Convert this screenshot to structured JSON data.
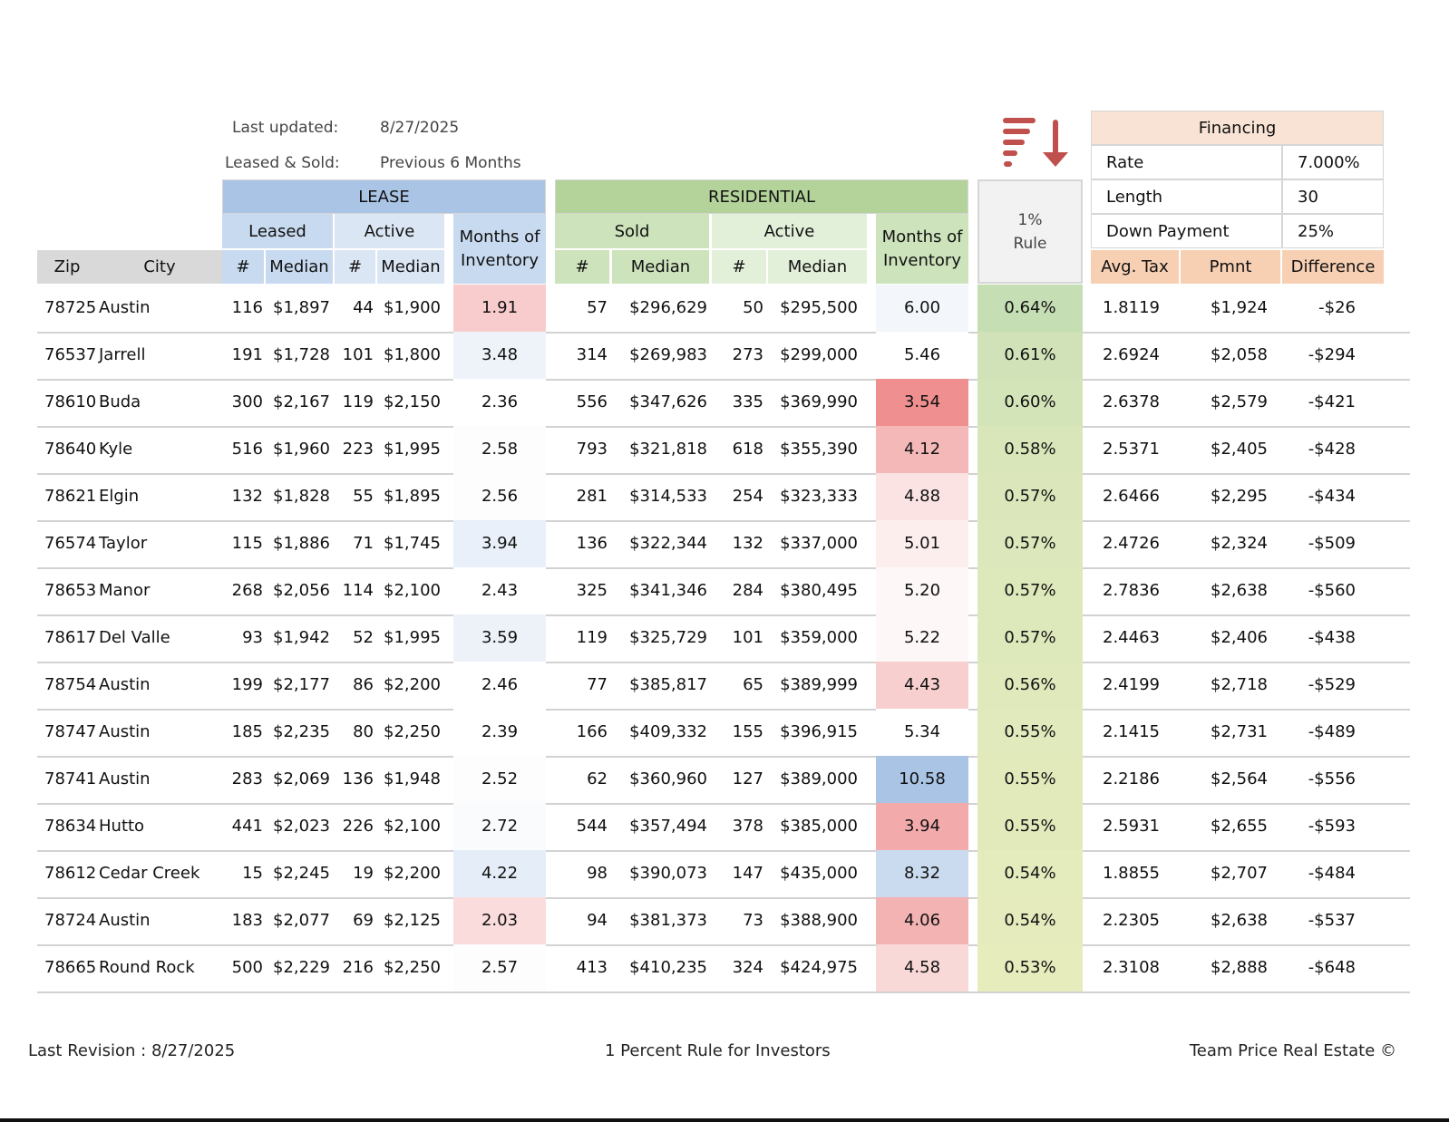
{
  "meta": {
    "last_updated_label": "Last updated:",
    "last_updated_value": "8/27/2025",
    "period_label": "Leased & Sold:",
    "period_value": "Previous 6 Months"
  },
  "headers": {
    "lease": "LEASE",
    "residential": "RESIDENTIAL",
    "leased": "Leased",
    "active": "Active",
    "sold": "Sold",
    "months_line1": "Months of",
    "months_line2": "Inventory",
    "one_pct_line1": "1%",
    "one_pct_line2": "Rule",
    "zip": "Zip",
    "city": "City",
    "count": "#",
    "median": "Median",
    "avg_tax": "Avg. Tax",
    "pmnt": "Pmnt",
    "difference": "Difference"
  },
  "financing": {
    "title": "Financing",
    "rows": [
      {
        "label": "Rate",
        "value": "7.000%"
      },
      {
        "label": "Length",
        "value": "30"
      },
      {
        "label": "Down Payment",
        "value": "25%"
      }
    ]
  },
  "sort_icon": "sort-descending-icon",
  "rows": [
    {
      "zip": "78725",
      "city": "Austin",
      "l_n": "116",
      "l_med": "$1,897",
      "la_n": "44",
      "la_med": "$1,900",
      "l_moi": "1.91",
      "l_moi_color": "#f8cccc",
      "s_n": "57",
      "s_med": "$296,629",
      "a_n": "50",
      "a_med": "$295,500",
      "r_moi": "6.00",
      "r_moi_color": "#f3f6fb",
      "pct": "0.64%",
      "pct_color": "#c6deb4",
      "tax": "1.8119",
      "pmnt": "$1,924",
      "diff": "-$26"
    },
    {
      "zip": "76537",
      "city": "Jarrell",
      "l_n": "191",
      "l_med": "$1,728",
      "la_n": "101",
      "la_med": "$1,800",
      "l_moi": "3.48",
      "l_moi_color": "#eef3fa",
      "s_n": "314",
      "s_med": "$269,983",
      "a_n": "273",
      "a_med": "$299,000",
      "r_moi": "5.46",
      "r_moi_color": "#ffffff",
      "pct": "0.61%",
      "pct_color": "#d1e2b8",
      "tax": "2.6924",
      "pmnt": "$2,058",
      "diff": "-$294"
    },
    {
      "zip": "78610",
      "city": "Buda",
      "l_n": "300",
      "l_med": "$2,167",
      "la_n": "119",
      "la_med": "$2,150",
      "l_moi": "2.36",
      "l_moi_color": "#ffffff",
      "s_n": "556",
      "s_med": "$347,626",
      "a_n": "335",
      "a_med": "$369,990",
      "r_moi": "3.54",
      "r_moi_color": "#ef8f8f",
      "pct": "0.60%",
      "pct_color": "#d4e4b9",
      "tax": "2.6378",
      "pmnt": "$2,579",
      "diff": "-$421"
    },
    {
      "zip": "78640",
      "city": "Kyle",
      "l_n": "516",
      "l_med": "$1,960",
      "la_n": "223",
      "la_med": "$1,995",
      "l_moi": "2.58",
      "l_moi_color": "#fdfdfe",
      "s_n": "793",
      "s_med": "$321,818",
      "a_n": "618",
      "a_med": "$355,390",
      "r_moi": "4.12",
      "r_moi_color": "#f5b8b8",
      "pct": "0.58%",
      "pct_color": "#d8e6ba",
      "tax": "2.5371",
      "pmnt": "$2,405",
      "diff": "-$428"
    },
    {
      "zip": "78621",
      "city": "Elgin",
      "l_n": "132",
      "l_med": "$1,828",
      "la_n": "55",
      "la_med": "$1,895",
      "l_moi": "2.56",
      "l_moi_color": "#fdfdfe",
      "s_n": "281",
      "s_med": "$314,533",
      "a_n": "254",
      "a_med": "$323,333",
      "r_moi": "4.88",
      "r_moi_color": "#fbe3e3",
      "pct": "0.57%",
      "pct_color": "#dbe7bb",
      "tax": "2.6466",
      "pmnt": "$2,295",
      "diff": "-$434"
    },
    {
      "zip": "76574",
      "city": "Taylor",
      "l_n": "115",
      "l_med": "$1,886",
      "la_n": "71",
      "la_med": "$1,745",
      "l_moi": "3.94",
      "l_moi_color": "#e9f0f9",
      "s_n": "136",
      "s_med": "$322,344",
      "a_n": "132",
      "a_med": "$337,000",
      "r_moi": "5.01",
      "r_moi_color": "#fdeeee",
      "pct": "0.57%",
      "pct_color": "#dce8bb",
      "tax": "2.4726",
      "pmnt": "$2,324",
      "diff": "-$509"
    },
    {
      "zip": "78653",
      "city": "Manor",
      "l_n": "268",
      "l_med": "$2,056",
      "la_n": "114",
      "la_med": "$2,100",
      "l_moi": "2.43",
      "l_moi_color": "#ffffff",
      "s_n": "325",
      "s_med": "$341,346",
      "a_n": "284",
      "a_med": "$380,495",
      "r_moi": "5.20",
      "r_moi_color": "#fdf7f7",
      "pct": "0.57%",
      "pct_color": "#dde8bb",
      "tax": "2.7836",
      "pmnt": "$2,638",
      "diff": "-$560"
    },
    {
      "zip": "78617",
      "city": "Del Valle",
      "l_n": "93",
      "l_med": "$1,942",
      "la_n": "52",
      "la_med": "$1,995",
      "l_moi": "3.59",
      "l_moi_color": "#edf2f9",
      "s_n": "119",
      "s_med": "$325,729",
      "a_n": "101",
      "a_med": "$359,000",
      "r_moi": "5.22",
      "r_moi_color": "#fdf7f7",
      "pct": "0.57%",
      "pct_color": "#dde8bb",
      "tax": "2.4463",
      "pmnt": "$2,406",
      "diff": "-$438"
    },
    {
      "zip": "78754",
      "city": "Austin",
      "l_n": "199",
      "l_med": "$2,177",
      "la_n": "86",
      "la_med": "$2,200",
      "l_moi": "2.46",
      "l_moi_color": "#ffffff",
      "s_n": "77",
      "s_med": "$385,817",
      "a_n": "65",
      "a_med": "$389,999",
      "r_moi": "4.43",
      "r_moi_color": "#f8cfcf",
      "pct": "0.56%",
      "pct_color": "#e0e9bc",
      "tax": "2.4199",
      "pmnt": "$2,718",
      "diff": "-$529"
    },
    {
      "zip": "78747",
      "city": "Austin",
      "l_n": "185",
      "l_med": "$2,235",
      "la_n": "80",
      "la_med": "$2,250",
      "l_moi": "2.39",
      "l_moi_color": "#ffffff",
      "s_n": "166",
      "s_med": "$409,332",
      "a_n": "155",
      "a_med": "$396,915",
      "r_moi": "5.34",
      "r_moi_color": "#ffffff",
      "pct": "0.55%",
      "pct_color": "#e1eabc",
      "tax": "2.1415",
      "pmnt": "$2,731",
      "diff": "-$489"
    },
    {
      "zip": "78741",
      "city": "Austin",
      "l_n": "283",
      "l_med": "$2,069",
      "la_n": "136",
      "la_med": "$1,948",
      "l_moi": "2.52",
      "l_moi_color": "#fdfdfe",
      "s_n": "62",
      "s_med": "$360,960",
      "a_n": "127",
      "a_med": "$389,000",
      "r_moi": "10.58",
      "r_moi_color": "#a9c4e4",
      "pct": "0.55%",
      "pct_color": "#e2eabc",
      "tax": "2.2186",
      "pmnt": "$2,564",
      "diff": "-$556"
    },
    {
      "zip": "78634",
      "city": "Hutto",
      "l_n": "441",
      "l_med": "$2,023",
      "la_n": "226",
      "la_med": "$2,100",
      "l_moi": "2.72",
      "l_moi_color": "#fafbfd",
      "s_n": "544",
      "s_med": "$357,494",
      "a_n": "378",
      "a_med": "$385,000",
      "r_moi": "3.94",
      "r_moi_color": "#f3aaaa",
      "pct": "0.55%",
      "pct_color": "#e2eabc",
      "tax": "2.5931",
      "pmnt": "$2,655",
      "diff": "-$593"
    },
    {
      "zip": "78612",
      "city": "Cedar Creek",
      "l_n": "15",
      "l_med": "$2,245",
      "la_n": "19",
      "la_med": "$2,200",
      "l_moi": "4.22",
      "l_moi_color": "#e5edf8",
      "s_n": "98",
      "s_med": "$390,073",
      "a_n": "147",
      "a_med": "$435,000",
      "r_moi": "8.32",
      "r_moi_color": "#cbdbef",
      "pct": "0.54%",
      "pct_color": "#e4ebbd",
      "tax": "1.8855",
      "pmnt": "$2,707",
      "diff": "-$484"
    },
    {
      "zip": "78724",
      "city": "Austin",
      "l_n": "183",
      "l_med": "$2,077",
      "la_n": "69",
      "la_med": "$2,125",
      "l_moi": "2.03",
      "l_moi_color": "#fadcdc",
      "s_n": "94",
      "s_med": "$381,373",
      "a_n": "73",
      "a_med": "$388,900",
      "r_moi": "4.06",
      "r_moi_color": "#f4b3b3",
      "pct": "0.54%",
      "pct_color": "#e5ebbd",
      "tax": "2.2305",
      "pmnt": "$2,638",
      "diff": "-$537"
    },
    {
      "zip": "78665",
      "city": "Round Rock",
      "l_n": "500",
      "l_med": "$2,229",
      "la_n": "216",
      "la_med": "$2,250",
      "l_moi": "2.57",
      "l_moi_color": "#fdfdfe",
      "s_n": "413",
      "s_med": "$410,235",
      "a_n": "324",
      "a_med": "$424,975",
      "r_moi": "4.58",
      "r_moi_color": "#f9d8d8",
      "pct": "0.53%",
      "pct_color": "#e7ecbd",
      "tax": "2.3108",
      "pmnt": "$2,888",
      "diff": "-$648"
    }
  ],
  "footer": {
    "left": "Last Revision : 8/27/2025",
    "center": "1 Percent Rule for Investors",
    "right": "Team Price Real Estate ©"
  }
}
